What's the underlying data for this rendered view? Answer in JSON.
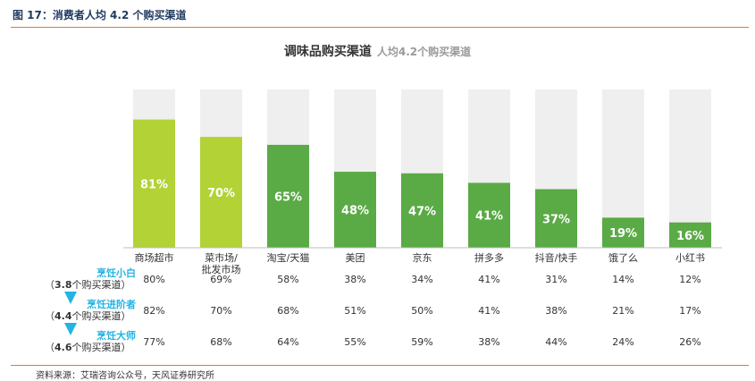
{
  "figure_caption": "图 17：消费者人均 4.2 个购买渠道",
  "source_text": "资料来源：艾瑞咨询公众号，天风证券研究所",
  "colors": {
    "bar_light": "#b2d235",
    "bar_dark": "#5aaa46",
    "bar_bg": "#efefef",
    "segment_label": "#24b3e3",
    "rule": "#e07b2a"
  },
  "segments": [
    {
      "name": "烹饪小白",
      "avg_prefix": "（",
      "avg_value": "3.8",
      "avg_suffix": "个购买渠道）",
      "values": [
        "80%",
        "69%",
        "58%",
        "38%",
        "34%",
        "41%",
        "31%",
        "14%",
        "12%"
      ]
    },
    {
      "name": "烹饪进阶者",
      "avg_prefix": "（",
      "avg_value": "4.4",
      "avg_suffix": "个购买渠道）",
      "values": [
        "82%",
        "70%",
        "68%",
        "51%",
        "50%",
        "41%",
        "38%",
        "21%",
        "17%"
      ]
    },
    {
      "name": "烹饪大师",
      "avg_prefix": "（",
      "avg_value": "4.6",
      "avg_suffix": "个购买渠道）",
      "values": [
        "77%",
        "68%",
        "64%",
        "55%",
        "59%",
        "38%",
        "44%",
        "24%",
        "26%"
      ]
    }
  ],
  "chart_data": {
    "type": "bar",
    "title": "调味品购买渠道",
    "subtitle": "人均4.2个购买渠道",
    "categories": [
      "商场超市",
      "菜市场/批发市场",
      "淘宝/天猫",
      "美团",
      "京东",
      "拼多多",
      "抖音/快手",
      "饿了么",
      "小红书"
    ],
    "category_lines": [
      [
        "商场超市"
      ],
      [
        "菜市场/",
        "批发市场"
      ],
      [
        "淘宝/天猫"
      ],
      [
        "美团"
      ],
      [
        "京东"
      ],
      [
        "拼多多"
      ],
      [
        "抖音/快手"
      ],
      [
        "饿了么"
      ],
      [
        "小红书"
      ]
    ],
    "values": [
      81,
      70,
      65,
      48,
      47,
      41,
      37,
      19,
      16
    ],
    "data_labels": [
      "81%",
      "70%",
      "65%",
      "48%",
      "47%",
      "41%",
      "37%",
      "19%",
      "16%"
    ],
    "highlight": [
      "light",
      "light",
      "dark",
      "dark",
      "dark",
      "dark",
      "dark",
      "dark",
      "dark"
    ],
    "ylim": [
      0,
      100
    ],
    "grid": false,
    "legend": "none"
  }
}
